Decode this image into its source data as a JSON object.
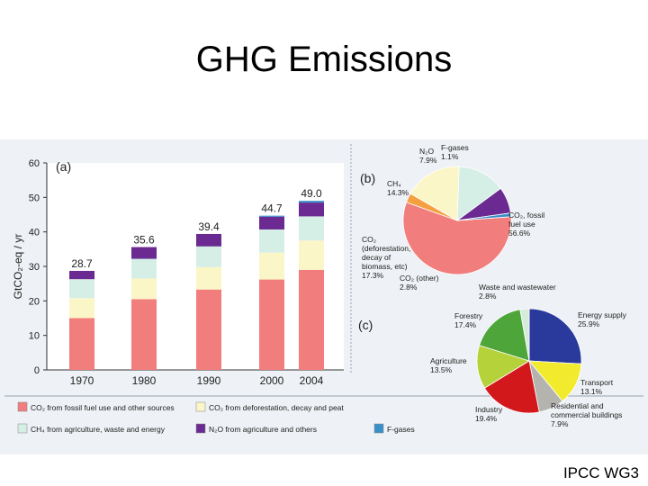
{
  "slide": {
    "title": "GHG Emissions",
    "credit": "IPCC WG3"
  },
  "colors": {
    "co2_fossil": "#f17d7d",
    "co2_defor": "#fbf6c7",
    "ch4": "#d5eee6",
    "n2o": "#6b2a91",
    "fgases": "#3a8fc9",
    "panel_bg": "#eef1f5"
  },
  "chart_data": [
    {
      "type": "bar",
      "panel_label": "(a)",
      "ylabel": "GtCO₂-eq / yr",
      "ylim": [
        0,
        60
      ],
      "yticks": [
        "0",
        "10",
        "20",
        "30",
        "40",
        "50",
        "60"
      ],
      "categories": [
        "1970",
        "1980",
        "1990",
        "2000",
        "2004"
      ],
      "totals": [
        "28.7",
        "35.6",
        "39.4",
        "44.7",
        "49.0"
      ],
      "series": [
        {
          "name": "CO₂ from fossil fuel use and other sources",
          "color": "#f17d7d",
          "values": [
            15.0,
            20.5,
            23.3,
            26.2,
            29.0
          ]
        },
        {
          "name": "CO₂ from deforestation, decay and peat",
          "color": "#fbf6c7",
          "values": [
            5.8,
            6.0,
            6.5,
            7.8,
            8.5
          ]
        },
        {
          "name": "CH₄ from agriculture, waste and energy",
          "color": "#d5eee6",
          "values": [
            5.5,
            5.7,
            6.0,
            6.7,
            7.0
          ]
        },
        {
          "name": "N₂O from agriculture and others",
          "color": "#6b2a91",
          "values": [
            2.4,
            3.4,
            3.6,
            3.7,
            4.0
          ]
        },
        {
          "name": "F-gases",
          "color": "#3a8fc9",
          "values": [
            0.0,
            0.0,
            0.0,
            0.3,
            0.5
          ]
        }
      ]
    },
    {
      "type": "pie",
      "panel_label": "(b)",
      "slices": [
        {
          "label": "CO₂, fossil fuel use",
          "pct": "56.6%",
          "value": 56.6,
          "color": "#f17d7d"
        },
        {
          "label": "CO₂ (other)",
          "pct": "2.8%",
          "value": 2.8,
          "color": "#f5a040"
        },
        {
          "label": "CO₂ (deforestation, decay of biomass, etc)",
          "pct": "17.3%",
          "value": 17.3,
          "color": "#fbf6c7"
        },
        {
          "label": "CH₄",
          "pct": "14.3%",
          "value": 14.3,
          "color": "#d5eee6"
        },
        {
          "label": "N₂O",
          "pct": "7.9%",
          "value": 7.9,
          "color": "#6b2a91"
        },
        {
          "label": "F-gases",
          "pct": "1.1%",
          "value": 1.1,
          "color": "#3a8fc9"
        }
      ]
    },
    {
      "type": "pie",
      "panel_label": "(c)",
      "slices": [
        {
          "label": "Energy supply",
          "pct": "25.9%",
          "value": 25.9,
          "color": "#2a3a9c"
        },
        {
          "label": "Transport",
          "pct": "13.1%",
          "value": 13.1,
          "color": "#f2ea2c"
        },
        {
          "label": "Residential and commercial buildings",
          "pct": "7.9%",
          "value": 7.9,
          "color": "#b5b3ad"
        },
        {
          "label": "Industry",
          "pct": "19.4%",
          "value": 19.4,
          "color": "#d3181c"
        },
        {
          "label": "Agriculture",
          "pct": "13.5%",
          "value": 13.5,
          "color": "#b6d23a"
        },
        {
          "label": "Forestry",
          "pct": "17.4%",
          "value": 17.4,
          "color": "#4ea63a"
        },
        {
          "label": "Waste and wastewater",
          "pct": "2.8%",
          "value": 2.8,
          "color": "#d4ecd9"
        }
      ]
    }
  ]
}
